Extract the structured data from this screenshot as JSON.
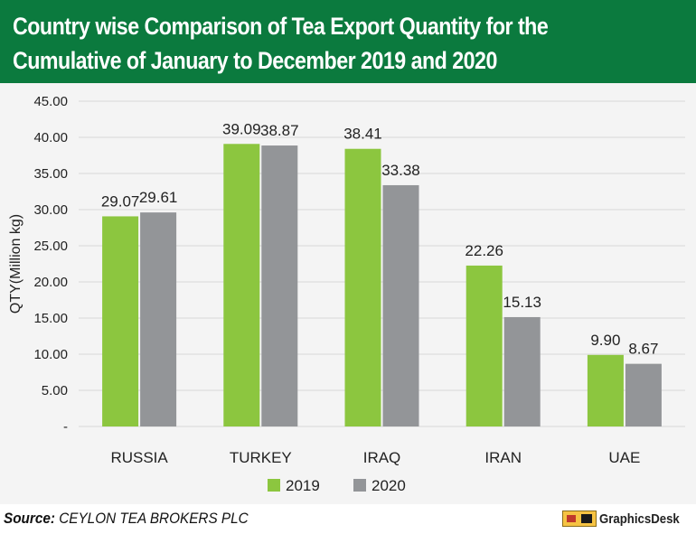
{
  "header": {
    "title_line1": "Country wise Comparison of Tea Export Quantity for the",
    "title_line2": "Cumulative of January to December 2019 and 2020"
  },
  "chart_data": {
    "type": "bar",
    "categories": [
      "RUSSIA",
      "TURKEY",
      "IRAQ",
      "IRAN",
      "UAE"
    ],
    "series": [
      {
        "name": "2019",
        "values": [
          29.07,
          39.09,
          38.41,
          22.26,
          9.9
        ],
        "labels": [
          "29.07",
          "39.09",
          "38.41",
          "22.26",
          "9.90"
        ],
        "color": "#8cc63f"
      },
      {
        "name": "2020",
        "values": [
          29.61,
          38.87,
          33.38,
          15.13,
          8.67
        ],
        "labels": [
          "29.61",
          "38.87",
          "33.38",
          "15.13",
          "8.67"
        ],
        "color": "#939598"
      }
    ],
    "ylabel": "QTY(Million kg)",
    "ylim": [
      0,
      45
    ],
    "y_ticks": [
      0,
      5,
      10,
      15,
      20,
      25,
      30,
      35,
      40,
      45
    ],
    "y_tick_labels": [
      "-",
      "5.00",
      "10.00",
      "15.00",
      "20.00",
      "25.00",
      "30.00",
      "35.00",
      "40.00",
      "45.00"
    ],
    "grid": true,
    "legend_position": "bottom"
  },
  "footer": {
    "source_label": "Source:",
    "source_text": "CEYLON TEA BROKERS PLC",
    "logo_text": "GraphicsDesk"
  }
}
